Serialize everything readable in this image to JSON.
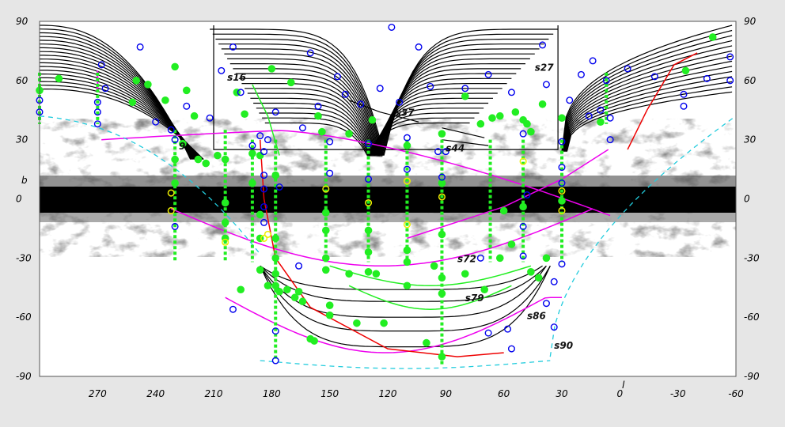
{
  "chart_data": {
    "type": "scatter",
    "title": "",
    "xlabel": "l",
    "ylabel": "b",
    "xlim": [
      300,
      -60
    ],
    "ylim": [
      -90,
      90
    ],
    "x_ticks": [
      "270",
      "240",
      "210",
      "180",
      "150",
      "120",
      "90",
      "60",
      "30",
      "0",
      "-30",
      "-60"
    ],
    "y_ticks": [
      "90",
      "60",
      "30",
      "0",
      "-30",
      "-60",
      "-90"
    ],
    "grid": false,
    "legend": "none",
    "colors": {
      "black_curves": "#000000",
      "green": "#22ee22",
      "blue": "#0000ee",
      "yellow": "#eeee00",
      "magenta": "#ee00ee",
      "red": "#ee0000",
      "cyan": "#22ccdd"
    },
    "series_labels": [
      {
        "text": "s16",
        "l": 203,
        "b": 60
      },
      {
        "text": "s27",
        "l": 44,
        "b": 65
      },
      {
        "text": "s37",
        "l": 116,
        "b": 42
      },
      {
        "text": "s44",
        "l": 90,
        "b": 24
      },
      {
        "text": "s72",
        "l": 84,
        "b": -32
      },
      {
        "text": "s79",
        "l": 80,
        "b": -52
      },
      {
        "text": "s86",
        "l": 48,
        "b": -61
      },
      {
        "text": "s90",
        "l": 34,
        "b": -76
      },
      {
        "text": "9",
        "l": 228,
        "b": 25
      }
    ],
    "column_l": [
      300,
      270,
      230,
      204,
      190,
      178,
      152,
      130,
      110,
      92,
      67,
      50,
      30,
      7
    ],
    "blue_points": [
      {
        "l": 300,
        "b": 50
      },
      {
        "l": 300,
        "b": 44
      },
      {
        "l": 268,
        "b": 68
      },
      {
        "l": 266,
        "b": 56
      },
      {
        "l": 270,
        "b": 49
      },
      {
        "l": 270,
        "b": 44
      },
      {
        "l": 270,
        "b": 38
      },
      {
        "l": 248,
        "b": 77
      },
      {
        "l": 240,
        "b": 39
      },
      {
        "l": 232,
        "b": 35
      },
      {
        "l": 230,
        "b": 30
      },
      {
        "l": 230,
        "b": -14
      },
      {
        "l": 224,
        "b": 47
      },
      {
        "l": 212,
        "b": 41
      },
      {
        "l": 206,
        "b": 65
      },
      {
        "l": 200,
        "b": 77
      },
      {
        "l": 196,
        "b": 54
      },
      {
        "l": 190,
        "b": 27
      },
      {
        "l": 186,
        "b": 32
      },
      {
        "l": 184,
        "b": 24
      },
      {
        "l": 182,
        "b": 30
      },
      {
        "l": 184,
        "b": 12
      },
      {
        "l": 184,
        "b": 5
      },
      {
        "l": 184,
        "b": -4
      },
      {
        "l": 184,
        "b": -12
      },
      {
        "l": 178,
        "b": 44
      },
      {
        "l": 176,
        "b": 6
      },
      {
        "l": 164,
        "b": 36
      },
      {
        "l": 160,
        "b": 74
      },
      {
        "l": 156,
        "b": 47
      },
      {
        "l": 150,
        "b": 29
      },
      {
        "l": 150,
        "b": 13
      },
      {
        "l": 146,
        "b": 62
      },
      {
        "l": 142,
        "b": 53
      },
      {
        "l": 134,
        "b": 48
      },
      {
        "l": 130,
        "b": 28
      },
      {
        "l": 130,
        "b": 10
      },
      {
        "l": 124,
        "b": 56
      },
      {
        "l": 118,
        "b": 87
      },
      {
        "l": 114,
        "b": 49
      },
      {
        "l": 110,
        "b": 31
      },
      {
        "l": 110,
        "b": 15
      },
      {
        "l": 104,
        "b": 77
      },
      {
        "l": 98,
        "b": 57
      },
      {
        "l": 94,
        "b": 24
      },
      {
        "l": 92,
        "b": 11
      },
      {
        "l": 80,
        "b": 56
      },
      {
        "l": 68,
        "b": 63
      },
      {
        "l": 56,
        "b": 54
      },
      {
        "l": 50,
        "b": 33
      },
      {
        "l": 48,
        "b": 2
      },
      {
        "l": 50,
        "b": -14
      },
      {
        "l": 50,
        "b": -29
      },
      {
        "l": 40,
        "b": 78
      },
      {
        "l": 38,
        "b": 58
      },
      {
        "l": 30,
        "b": 29
      },
      {
        "l": 30,
        "b": 16
      },
      {
        "l": 30,
        "b": 8
      },
      {
        "l": 30,
        "b": -33
      },
      {
        "l": 26,
        "b": 50
      },
      {
        "l": 20,
        "b": 63
      },
      {
        "l": 16,
        "b": 42
      },
      {
        "l": 14,
        "b": 70
      },
      {
        "l": 10,
        "b": 45
      },
      {
        "l": 7,
        "b": 60
      },
      {
        "l": 5,
        "b": 41
      },
      {
        "l": 5,
        "b": 30
      },
      {
        "l": -4,
        "b": 66
      },
      {
        "l": -18,
        "b": 62
      },
      {
        "l": -33,
        "b": 53
      },
      {
        "l": -33,
        "b": 47
      },
      {
        "l": -45,
        "b": 61
      },
      {
        "l": -57,
        "b": 72
      },
      {
        "l": -57,
        "b": 60
      },
      {
        "l": 166,
        "b": -34
      },
      {
        "l": 72,
        "b": -30
      },
      {
        "l": 68,
        "b": -68
      },
      {
        "l": 58,
        "b": -66
      },
      {
        "l": 56,
        "b": -76
      },
      {
        "l": 38,
        "b": -53
      },
      {
        "l": 34,
        "b": -65
      },
      {
        "l": 34,
        "b": -42
      },
      {
        "l": 200,
        "b": -56
      },
      {
        "l": 178,
        "b": -82
      },
      {
        "l": 178,
        "b": -67
      },
      {
        "l": 90,
        "b": 24
      }
    ],
    "green_points": [
      {
        "l": 300,
        "b": 55
      },
      {
        "l": 290,
        "b": 61
      },
      {
        "l": 252,
        "b": 49
      },
      {
        "l": 250,
        "b": 60
      },
      {
        "l": 244,
        "b": 58
      },
      {
        "l": 235,
        "b": 50
      },
      {
        "l": 230,
        "b": 67
      },
      {
        "l": 224,
        "b": 55
      },
      {
        "l": 220,
        "b": 42
      },
      {
        "l": 218,
        "b": 20
      },
      {
        "l": 214,
        "b": 18
      },
      {
        "l": 208,
        "b": 22
      },
      {
        "l": 198,
        "b": 54
      },
      {
        "l": 194,
        "b": 43
      },
      {
        "l": 190,
        "b": 23
      },
      {
        "l": 186,
        "b": 22
      },
      {
        "l": 180,
        "b": 66
      },
      {
        "l": 170,
        "b": 59
      },
      {
        "l": 156,
        "b": 42
      },
      {
        "l": 154,
        "b": 34
      },
      {
        "l": 140,
        "b": 33
      },
      {
        "l": 128,
        "b": 40
      },
      {
        "l": 110,
        "b": 27
      },
      {
        "l": 92,
        "b": 33
      },
      {
        "l": 80,
        "b": 52
      },
      {
        "l": 72,
        "b": 38
      },
      {
        "l": 66,
        "b": 41
      },
      {
        "l": 62,
        "b": 42
      },
      {
        "l": 54,
        "b": 44
      },
      {
        "l": 50,
        "b": 40
      },
      {
        "l": 48,
        "b": 38
      },
      {
        "l": 46,
        "b": 34
      },
      {
        "l": 40,
        "b": 48
      },
      {
        "l": 30,
        "b": 41
      },
      {
        "l": 10,
        "b": 39
      },
      {
        "l": -34,
        "b": 65
      },
      {
        "l": -48,
        "b": 82
      },
      {
        "l": 230,
        "b": 8
      },
      {
        "l": 230,
        "b": 20
      },
      {
        "l": 226,
        "b": 28
      },
      {
        "l": 204,
        "b": 20
      },
      {
        "l": 204,
        "b": -2
      },
      {
        "l": 204,
        "b": -12
      },
      {
        "l": 204,
        "b": -20
      },
      {
        "l": 190,
        "b": 8
      },
      {
        "l": 186,
        "b": -8
      },
      {
        "l": 186,
        "b": -20
      },
      {
        "l": 186,
        "b": -36
      },
      {
        "l": 178,
        "b": 12
      },
      {
        "l": 178,
        "b": -20
      },
      {
        "l": 178,
        "b": -30
      },
      {
        "l": 178,
        "b": -38
      },
      {
        "l": 178,
        "b": -44
      },
      {
        "l": 172,
        "b": -46
      },
      {
        "l": 168,
        "b": -50
      },
      {
        "l": 152,
        "b": -7
      },
      {
        "l": 152,
        "b": -16
      },
      {
        "l": 152,
        "b": -30
      },
      {
        "l": 152,
        "b": -36
      },
      {
        "l": 140,
        "b": -38
      },
      {
        "l": 130,
        "b": -16
      },
      {
        "l": 130,
        "b": -27
      },
      {
        "l": 130,
        "b": -37
      },
      {
        "l": 126,
        "b": -38
      },
      {
        "l": 110,
        "b": -26
      },
      {
        "l": 110,
        "b": -32
      },
      {
        "l": 96,
        "b": -34
      },
      {
        "l": 92,
        "b": 8
      },
      {
        "l": 92,
        "b": -18
      },
      {
        "l": 92,
        "b": -40
      },
      {
        "l": 92,
        "b": -48
      },
      {
        "l": 92,
        "b": -80
      },
      {
        "l": 80,
        "b": -38
      },
      {
        "l": 70,
        "b": -46
      },
      {
        "l": 62,
        "b": -30
      },
      {
        "l": 56,
        "b": -23
      },
      {
        "l": 46,
        "b": -37
      },
      {
        "l": 42,
        "b": -40
      },
      {
        "l": 38,
        "b": -30
      },
      {
        "l": 60,
        "b": -6
      },
      {
        "l": 50,
        "b": -4
      },
      {
        "l": 30,
        "b": -1
      },
      {
        "l": 196,
        "b": -46
      },
      {
        "l": 182,
        "b": -44
      },
      {
        "l": 176,
        "b": -47
      },
      {
        "l": 166,
        "b": -47
      },
      {
        "l": 160,
        "b": -71
      },
      {
        "l": 158,
        "b": -72
      },
      {
        "l": 150,
        "b": -59
      },
      {
        "l": 136,
        "b": -63
      },
      {
        "l": 122,
        "b": -63
      },
      {
        "l": 110,
        "b": -44
      },
      {
        "l": 100,
        "b": -73
      },
      {
        "l": 150,
        "b": -54
      },
      {
        "l": 164,
        "b": -52
      }
    ],
    "yellow_points": [
      {
        "l": 232,
        "b": 3
      },
      {
        "l": 232,
        "b": -6
      },
      {
        "l": 204,
        "b": -22
      },
      {
        "l": 184,
        "b": -20
      },
      {
        "l": 182,
        "b": -18
      },
      {
        "l": 152,
        "b": 5
      },
      {
        "l": 130,
        "b": -2
      },
      {
        "l": 110,
        "b": 9
      },
      {
        "l": 110,
        "b": -13
      },
      {
        "l": 92,
        "b": 1
      },
      {
        "l": 50,
        "b": 19
      },
      {
        "l": 30,
        "b": 4
      },
      {
        "l": 30,
        "b": -6
      }
    ]
  }
}
